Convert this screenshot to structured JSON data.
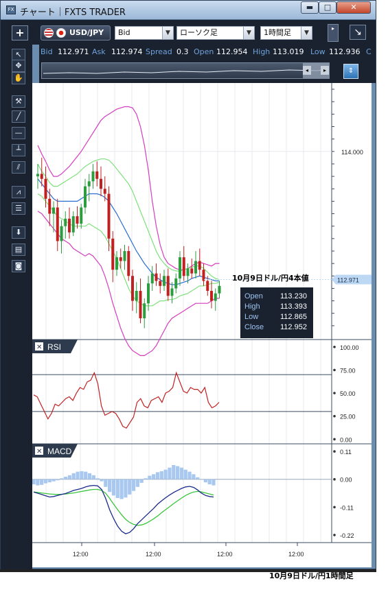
{
  "window": {
    "title": "チャート｜FXTS TRADER",
    "app_icon_text": "FX",
    "min_glyph": "▬",
    "max_glyph": "□",
    "close_glyph": "✕"
  },
  "toolbar": {
    "add_glyph": "+",
    "symbol": "USD/JPY",
    "price_type": "Bid",
    "chart_type": "ローソク足",
    "timeframe": "1時間足",
    "dropdown_glyph": "▼",
    "panel_glyph": "▸",
    "diag_glyph": "↘"
  },
  "quote": {
    "bid_label": "Bid",
    "bid": "112.971",
    "ask_label": "Ask",
    "ask": "112.974",
    "spread_label": "Spread",
    "spread": "0.3",
    "open_label": "Open",
    "open": "112.954",
    "high_label": "High",
    "high": "113.019",
    "low_label": "Low",
    "low": "112.936",
    "close_label_partial": "C"
  },
  "navigator": {
    "left_glyph": "◂",
    "right_glyph": "▸",
    "button_glyph": "⇕"
  },
  "tools": [
    {
      "name": "pointer-tool-icon",
      "glyph": "↖"
    },
    {
      "name": "crosshair-tool-icon",
      "glyph": "✥"
    },
    {
      "name": "hand-tool-icon",
      "glyph": "✋"
    },
    {
      "name": "magic-line-tool-icon",
      "glyph": "⚒"
    },
    {
      "name": "trend-line-tool-icon",
      "glyph": "╱"
    },
    {
      "name": "horizontal-line-tool-icon",
      "glyph": "—"
    },
    {
      "name": "vertical-line-tool-icon",
      "glyph": "┴"
    },
    {
      "name": "channel-tool-icon",
      "glyph": "⫽"
    },
    {
      "name": "fan-tool-icon",
      "glyph": "⩘"
    },
    {
      "name": "fibonacci-tool-icon",
      "glyph": "☰"
    },
    {
      "name": "arrow-down-tool-icon",
      "glyph": "⬇"
    },
    {
      "name": "list-tool-icon",
      "glyph": "▤"
    },
    {
      "name": "camera-tool-icon",
      "glyph": "◙"
    }
  ],
  "annotation": {
    "top_caption": "10月9日ドル/円4本値",
    "bottom_caption": "10月9日ドル/円1時間足",
    "open_label": "Open",
    "open": "113.230",
    "high_label": "High",
    "high": "113.393",
    "low_label": "Low",
    "low": "112.865",
    "close_label": "Close",
    "close": "112.952"
  },
  "colors": {
    "bull_candle": "#2c9c3e",
    "bear_candle": "#c02020",
    "bollinger_outer": "#d63cc0",
    "bollinger_inner": "#7ee07a",
    "bollinger_mid": "#2a6ed0",
    "rsi_line": "#c02020",
    "macd_line": "#1a2a8a",
    "signal_line": "#3ac43a",
    "histogram": "#a8c8f0",
    "price_tag": "#bcd8f4"
  },
  "chart_data": [
    {
      "type": "candlestick",
      "title": "USD/JPY 1時間足",
      "y_tick_labels": [
        "114.000"
      ],
      "y_ticks": [
        114.0
      ],
      "ylim": [
        112.5,
        114.55
      ],
      "current_price_label": "112.971",
      "current_price": 112.971,
      "x_tick_labels": [
        "12:00",
        "12:00",
        "12:00",
        "12:00"
      ],
      "grid": true,
      "candles": [
        {
          "o": 113.8,
          "h": 113.9,
          "l": 113.7,
          "c": 113.82
        },
        {
          "o": 113.82,
          "h": 113.95,
          "l": 113.72,
          "c": 113.78
        },
        {
          "o": 113.78,
          "h": 113.88,
          "l": 113.55,
          "c": 113.62
        },
        {
          "o": 113.62,
          "h": 113.7,
          "l": 113.4,
          "c": 113.5
        },
        {
          "o": 113.5,
          "h": 113.6,
          "l": 113.35,
          "c": 113.55
        },
        {
          "o": 113.55,
          "h": 113.62,
          "l": 113.2,
          "c": 113.28
        },
        {
          "o": 113.28,
          "h": 113.45,
          "l": 113.18,
          "c": 113.4
        },
        {
          "o": 113.4,
          "h": 113.52,
          "l": 113.3,
          "c": 113.46
        },
        {
          "o": 113.46,
          "h": 113.55,
          "l": 113.3,
          "c": 113.35
        },
        {
          "o": 113.35,
          "h": 113.52,
          "l": 113.32,
          "c": 113.48
        },
        {
          "o": 113.48,
          "h": 113.56,
          "l": 113.38,
          "c": 113.42
        },
        {
          "o": 113.42,
          "h": 113.58,
          "l": 113.38,
          "c": 113.55
        },
        {
          "o": 113.55,
          "h": 113.78,
          "l": 113.5,
          "c": 113.72
        },
        {
          "o": 113.72,
          "h": 113.82,
          "l": 113.6,
          "c": 113.76
        },
        {
          "o": 113.76,
          "h": 113.9,
          "l": 113.7,
          "c": 113.84
        },
        {
          "o": 113.84,
          "h": 113.92,
          "l": 113.72,
          "c": 113.78
        },
        {
          "o": 113.78,
          "h": 113.88,
          "l": 113.64,
          "c": 113.7
        },
        {
          "o": 113.7,
          "h": 113.8,
          "l": 113.6,
          "c": 113.66
        },
        {
          "o": 113.66,
          "h": 113.72,
          "l": 113.2,
          "c": 113.3
        },
        {
          "o": 113.3,
          "h": 113.36,
          "l": 112.95,
          "c": 113.05
        },
        {
          "o": 113.05,
          "h": 113.2,
          "l": 113.0,
          "c": 113.15
        },
        {
          "o": 113.15,
          "h": 113.22,
          "l": 113.06,
          "c": 113.12
        },
        {
          "o": 113.12,
          "h": 113.25,
          "l": 113.05,
          "c": 113.2
        },
        {
          "o": 113.2,
          "h": 113.24,
          "l": 112.96,
          "c": 113.0
        },
        {
          "o": 113.0,
          "h": 113.05,
          "l": 112.72,
          "c": 112.8
        },
        {
          "o": 112.8,
          "h": 112.95,
          "l": 112.7,
          "c": 112.88
        },
        {
          "o": 112.88,
          "h": 112.98,
          "l": 112.62,
          "c": 112.66
        },
        {
          "o": 112.66,
          "h": 112.82,
          "l": 112.58,
          "c": 112.78
        },
        {
          "o": 112.78,
          "h": 113.0,
          "l": 112.72,
          "c": 112.94
        },
        {
          "o": 112.94,
          "h": 113.08,
          "l": 112.88,
          "c": 113.02
        },
        {
          "o": 113.02,
          "h": 113.1,
          "l": 112.92,
          "c": 112.96
        },
        {
          "o": 112.96,
          "h": 113.02,
          "l": 112.86,
          "c": 112.92
        },
        {
          "o": 112.92,
          "h": 113.05,
          "l": 112.88,
          "c": 113.0
        },
        {
          "o": 113.0,
          "h": 113.06,
          "l": 112.8,
          "c": 112.84
        },
        {
          "o": 112.84,
          "h": 112.95,
          "l": 112.78,
          "c": 112.9
        },
        {
          "o": 112.9,
          "h": 113.02,
          "l": 112.86,
          "c": 112.98
        },
        {
          "o": 112.98,
          "h": 113.2,
          "l": 112.92,
          "c": 113.15
        },
        {
          "o": 113.15,
          "h": 113.24,
          "l": 112.96,
          "c": 113.0
        },
        {
          "o": 113.0,
          "h": 113.1,
          "l": 112.94,
          "c": 113.06
        },
        {
          "o": 113.06,
          "h": 113.14,
          "l": 112.98,
          "c": 113.02
        },
        {
          "o": 113.02,
          "h": 113.2,
          "l": 112.98,
          "c": 113.12
        },
        {
          "o": 113.12,
          "h": 113.22,
          "l": 113.0,
          "c": 113.05
        },
        {
          "o": 113.05,
          "h": 113.1,
          "l": 112.92,
          "c": 112.96
        },
        {
          "o": 112.96,
          "h": 113.0,
          "l": 112.84,
          "c": 112.88
        },
        {
          "o": 112.88,
          "h": 112.96,
          "l": 112.74,
          "c": 112.8
        },
        {
          "o": 112.8,
          "h": 112.9,
          "l": 112.72,
          "c": 112.86
        },
        {
          "o": 112.86,
          "h": 112.96,
          "l": 112.82,
          "c": 112.92
        }
      ],
      "bollinger_upper": [
        114.05,
        113.98,
        113.92,
        113.85,
        113.8,
        113.8,
        113.82,
        113.85,
        113.88,
        113.92,
        113.96,
        114.0,
        114.05,
        114.1,
        114.15,
        114.2,
        114.25,
        114.28,
        114.3,
        114.32,
        114.34,
        114.35,
        114.36,
        114.36,
        114.35,
        114.3,
        114.2,
        114.05,
        113.85,
        113.6,
        113.4,
        113.25,
        113.15,
        113.1,
        113.08,
        113.06,
        113.05,
        113.05,
        113.06,
        113.08,
        113.1,
        113.11,
        113.1,
        113.09,
        113.08,
        113.1,
        113.1
      ],
      "bollinger_upper_inner": [
        113.9,
        113.84,
        113.8,
        113.75,
        113.72,
        113.72,
        113.74,
        113.76,
        113.78,
        113.8,
        113.82,
        113.85,
        113.88,
        113.9,
        113.92,
        113.93,
        113.94,
        113.94,
        113.93,
        113.9,
        113.86,
        113.82,
        113.78,
        113.74,
        113.68,
        113.6,
        113.52,
        113.44,
        113.36,
        113.28,
        113.2,
        113.14,
        113.1,
        113.07,
        113.05,
        113.04,
        113.04,
        113.05,
        113.06,
        113.07,
        113.08,
        113.08,
        113.06,
        113.03,
        113.0,
        112.98,
        112.97
      ],
      "bollinger_mid": [
        113.78,
        113.74,
        113.7,
        113.66,
        113.62,
        113.6,
        113.6,
        113.6,
        113.6,
        113.6,
        113.6,
        113.62,
        113.64,
        113.66,
        113.66,
        113.66,
        113.65,
        113.63,
        113.6,
        113.55,
        113.5,
        113.44,
        113.38,
        113.32,
        113.26,
        113.2,
        113.15,
        113.1,
        113.06,
        113.02,
        112.99,
        112.97,
        112.95,
        112.94,
        112.93,
        112.93,
        112.94,
        112.95,
        112.96,
        112.98,
        112.99,
        113.0,
        112.99,
        112.98,
        112.97,
        112.96,
        112.96
      ],
      "bollinger_lower_inner": [
        113.66,
        113.64,
        113.6,
        113.56,
        113.52,
        113.48,
        113.46,
        113.44,
        113.42,
        113.4,
        113.4,
        113.4,
        113.4,
        113.42,
        113.4,
        113.38,
        113.36,
        113.32,
        113.26,
        113.2,
        113.14,
        113.06,
        112.98,
        112.9,
        112.84,
        112.8,
        112.78,
        112.76,
        112.76,
        112.76,
        112.78,
        112.8,
        112.8,
        112.81,
        112.81,
        112.82,
        112.84,
        112.85,
        112.86,
        112.88,
        112.9,
        112.92,
        112.92,
        112.93,
        112.94,
        112.94,
        112.95
      ],
      "bollinger_lower": [
        113.52,
        113.5,
        113.46,
        113.42,
        113.38,
        113.34,
        113.3,
        113.28,
        113.26,
        113.22,
        113.2,
        113.18,
        113.16,
        113.18,
        113.16,
        113.12,
        113.08,
        113.0,
        112.9,
        112.78,
        112.68,
        112.58,
        112.5,
        112.44,
        112.4,
        112.38,
        112.36,
        112.36,
        112.38,
        112.4,
        112.44,
        112.5,
        112.56,
        112.62,
        112.66,
        112.68,
        112.7,
        112.72,
        112.74,
        112.76,
        112.78,
        112.78,
        112.78,
        112.78,
        112.8,
        112.82,
        112.82
      ]
    },
    {
      "type": "line",
      "title": "RSI",
      "y_tick_labels": [
        "100.00",
        "75.00",
        "50.00",
        "25.00",
        "0.00"
      ],
      "y_ticks": [
        100,
        75,
        50,
        25,
        0
      ],
      "ylim": [
        -5,
        108
      ],
      "levels": [
        70,
        30
      ],
      "values": [
        48,
        46,
        38,
        30,
        22,
        28,
        38,
        36,
        40,
        44,
        46,
        42,
        50,
        56,
        54,
        62,
        64,
        72,
        60,
        36,
        26,
        28,
        30,
        28,
        22,
        14,
        12,
        18,
        24,
        40,
        44,
        36,
        34,
        42,
        44,
        46,
        40,
        50,
        52,
        56,
        72,
        62,
        52,
        50,
        56,
        54,
        54,
        50,
        56,
        40,
        34,
        36,
        40
      ]
    },
    {
      "type": "line",
      "title": "MACD",
      "y_tick_labels": [
        "0.11",
        "0.00",
        "-0.11",
        "-0.22"
      ],
      "y_ticks": [
        0.11,
        0.0,
        -0.11,
        -0.22
      ],
      "ylim": [
        -0.25,
        0.14
      ],
      "macd": [
        -0.05,
        -0.055,
        -0.06,
        -0.065,
        -0.07,
        -0.068,
        -0.064,
        -0.06,
        -0.056,
        -0.05,
        -0.044,
        -0.04,
        -0.036,
        -0.03,
        -0.026,
        -0.024,
        -0.026,
        -0.04,
        -0.075,
        -0.12,
        -0.155,
        -0.185,
        -0.205,
        -0.215,
        -0.21,
        -0.195,
        -0.175,
        -0.16,
        -0.145,
        -0.13,
        -0.115,
        -0.098,
        -0.085,
        -0.073,
        -0.062,
        -0.052,
        -0.044,
        -0.036,
        -0.03,
        -0.028,
        -0.032,
        -0.042,
        -0.055,
        -0.064,
        -0.068,
        -0.07
      ],
      "signal": [
        -0.05,
        -0.052,
        -0.054,
        -0.056,
        -0.058,
        -0.059,
        -0.06,
        -0.059,
        -0.058,
        -0.056,
        -0.054,
        -0.051,
        -0.048,
        -0.045,
        -0.042,
        -0.04,
        -0.04,
        -0.044,
        -0.055,
        -0.075,
        -0.098,
        -0.12,
        -0.14,
        -0.158,
        -0.17,
        -0.178,
        -0.182,
        -0.18,
        -0.175,
        -0.166,
        -0.156,
        -0.145,
        -0.132,
        -0.12,
        -0.108,
        -0.096,
        -0.085,
        -0.074,
        -0.064,
        -0.056,
        -0.05,
        -0.048,
        -0.05,
        -0.054,
        -0.058,
        -0.062
      ],
      "histogram": [
        -0.02,
        -0.024,
        -0.022,
        -0.016,
        -0.012,
        -0.008,
        -0.004,
        0.004,
        0.01,
        0.016,
        0.024,
        0.03,
        0.032,
        0.03,
        0.024,
        0.016,
        0.004,
        -0.008,
        -0.03,
        -0.05,
        -0.064,
        -0.074,
        -0.078,
        -0.072,
        -0.06,
        -0.046,
        -0.03,
        -0.014,
        0.004,
        0.014,
        0.02,
        0.028,
        0.032,
        0.038,
        0.046,
        0.056,
        0.052,
        0.046,
        0.038,
        0.03,
        0.02,
        0.008,
        -0.002,
        -0.012,
        -0.02,
        -0.024
      ]
    }
  ]
}
